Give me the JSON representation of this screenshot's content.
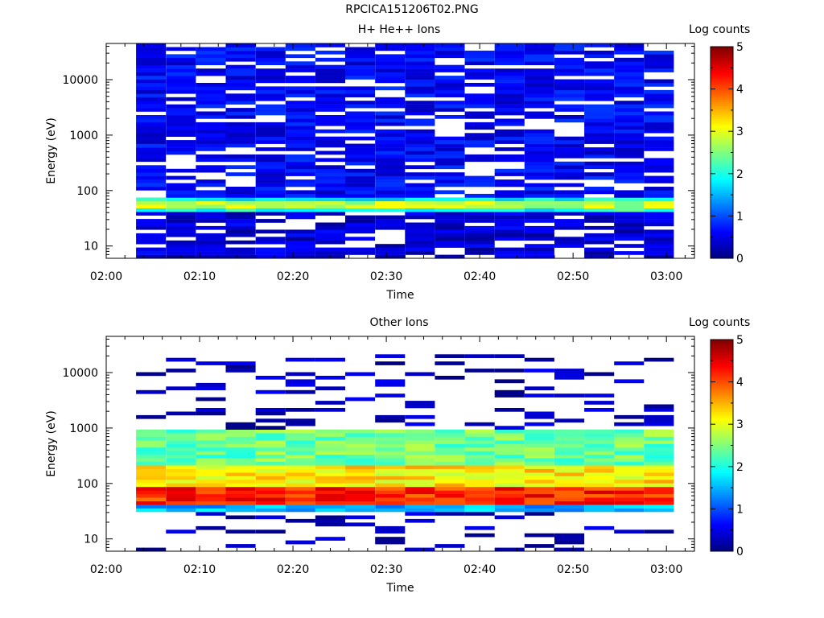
{
  "page": {
    "title": "RPCICA151206T02.PNG"
  },
  "colorbar": {
    "label": "Log counts",
    "ticks": [
      "0",
      "1",
      "2",
      "3",
      "4",
      "5"
    ],
    "range": [
      0,
      5
    ],
    "colormap": "jet"
  },
  "chart_data": [
    {
      "type": "heatmap",
      "title": "H+ He++ Ions",
      "xlabel": "Time",
      "ylabel": "Energy (eV)",
      "x_ticks": [
        "02:00",
        "02:10",
        "02:20",
        "02:30",
        "02:40",
        "02:50",
        "03:00"
      ],
      "xlim_minutes": [
        0,
        63
      ],
      "y_ticks": [
        "10",
        "100",
        "1000",
        "10000"
      ],
      "y_scale": "log",
      "ylim": [
        6,
        45000
      ],
      "time_bins_minutes": [
        3.2,
        6.4,
        9.6,
        12.8,
        16.0,
        19.2,
        22.4,
        25.6,
        28.8,
        32.0,
        35.2,
        38.4,
        41.6,
        44.8,
        48.0,
        51.2,
        54.4,
        57.6
      ],
      "description_levels": {
        "energy_below_40eV": "sparse low counts (about 0-1)",
        "energy_40_to_80eV": "peak band, log counts about 2-3",
        "energy_80_to_45000eV": "low counts (about 0.3-1.2) with gaps"
      },
      "profile": [
        {
          "energy_min": 6,
          "energy_max": 40,
          "level": 0.4
        },
        {
          "energy_min": 40,
          "energy_max": 50,
          "level": 2.0
        },
        {
          "energy_min": 50,
          "energy_max": 62,
          "level": 2.8
        },
        {
          "energy_min": 62,
          "energy_max": 80,
          "level": 1.9
        },
        {
          "energy_min": 80,
          "energy_max": 45000,
          "level": 0.6
        }
      ]
    },
    {
      "type": "heatmap",
      "title": "Other Ions",
      "xlabel": "Time",
      "ylabel": "Energy (eV)",
      "x_ticks": [
        "02:00",
        "02:10",
        "02:20",
        "02:30",
        "02:40",
        "02:50",
        "03:00"
      ],
      "xlim_minutes": [
        0,
        63
      ],
      "y_ticks": [
        "10",
        "100",
        "1000",
        "10000"
      ],
      "y_scale": "log",
      "ylim": [
        6,
        45000
      ],
      "time_bins_minutes": [
        3.2,
        6.4,
        9.6,
        12.8,
        16.0,
        19.2,
        22.4,
        25.6,
        28.8,
        32.0,
        35.2,
        38.4,
        41.6,
        44.8,
        48.0,
        51.2,
        54.4,
        57.6
      ],
      "profile": [
        {
          "energy_min": 6,
          "energy_max": 30,
          "level": 0.3
        },
        {
          "energy_min": 30,
          "energy_max": 40,
          "level": 1.5
        },
        {
          "energy_min": 40,
          "energy_max": 90,
          "level": 4.2
        },
        {
          "energy_min": 90,
          "energy_max": 200,
          "level": 3.2
        },
        {
          "energy_min": 200,
          "energy_max": 900,
          "level": 2.4
        },
        {
          "energy_min": 900,
          "energy_max": 20000,
          "level": 0.3
        }
      ]
    }
  ]
}
